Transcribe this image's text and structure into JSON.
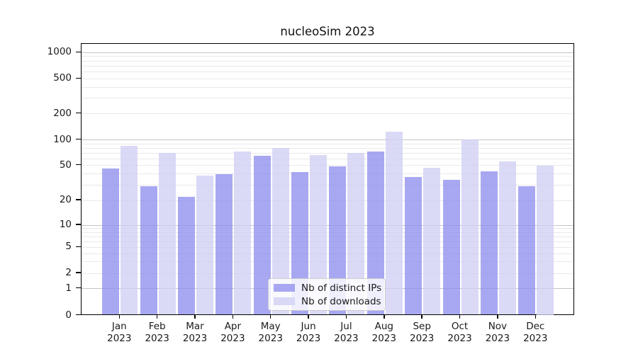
{
  "title": "nucleoSim 2023",
  "chart_data": {
    "type": "bar",
    "title": "nucleoSim 2023",
    "categories": [
      "Jan 2023",
      "Feb 2023",
      "Mar 2023",
      "Apr 2023",
      "May 2023",
      "Jun 2023",
      "Jul 2023",
      "Aug 2023",
      "Sep 2023",
      "Oct 2023",
      "Nov 2023",
      "Dec 2023"
    ],
    "series": [
      {
        "name": "Nb of distinct IPs",
        "color": "rgba(143,143,238,0.78)",
        "values": [
          46,
          29,
          22,
          40,
          65,
          42,
          49,
          73,
          37,
          34,
          43,
          29
        ]
      },
      {
        "name": "Nb of downloads",
        "color": "rgba(208,208,243,0.78)",
        "values": [
          85,
          70,
          38,
          73,
          80,
          66,
          70,
          125,
          47,
          102,
          56,
          50
        ]
      }
    ],
    "xlabel": "",
    "ylabel": "",
    "yscale": "symlog",
    "ytick_labels": [
      0,
      1,
      2,
      5,
      10,
      20,
      50,
      100,
      200,
      500,
      1000
    ],
    "ylim": [
      0,
      1400
    ],
    "grid": "on",
    "gridline_minor_values": [
      2,
      3,
      4,
      5,
      6,
      7,
      8,
      9,
      20,
      30,
      40,
      50,
      60,
      70,
      80,
      90,
      200,
      300,
      400,
      500,
      600,
      700,
      800,
      900
    ],
    "gridline_major_values": [
      1,
      10,
      100,
      1000
    ],
    "legend_position": "lower-center",
    "legend_items": [
      "Nb of distinct IPs",
      "Nb of downloads"
    ]
  },
  "colors": {
    "bar_distinct_ips": "rgba(143,143,238,0.78)",
    "bar_downloads": "rgba(208,208,243,0.78)",
    "gridline_minor": "#e9e9e9",
    "gridline_major": "#c3c3c3",
    "axis": "#000000",
    "text": "#1a1a1a"
  }
}
